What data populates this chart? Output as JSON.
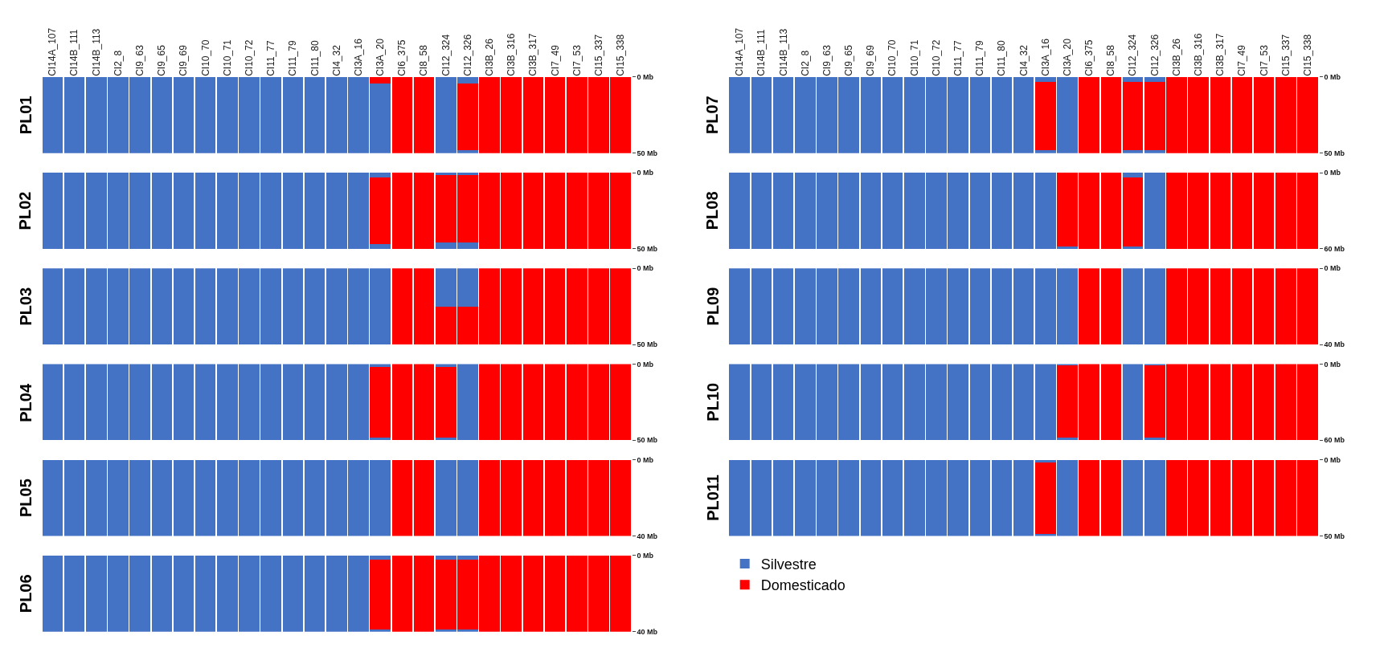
{
  "chart_data": [
    {
      "type": "bar",
      "stacked": true,
      "title": "PL01",
      "categories": [
        "CI14A_107",
        "CI14B_111",
        "CI14B_113",
        "CI2_8",
        "CI9_63",
        "CI9_65",
        "CI9_69",
        "CI10_70",
        "CI10_71",
        "CI10_72",
        "CI11_77",
        "CI11_79",
        "CI11_80",
        "CI4_32",
        "CI3A_16",
        "CI3A_20",
        "CI6_375",
        "CI8_58",
        "CI12_324",
        "CI12_326",
        "CI3B_26",
        "CI3B_316",
        "CI3B_317",
        "CI7_49",
        "CI7_53",
        "CI15_337",
        "CI15_338"
      ],
      "ylim": [
        50,
        0
      ],
      "yticks": [
        {
          "value": 0,
          "label": "0 Mb"
        },
        {
          "value": 50,
          "label": "50 Mb"
        }
      ],
      "series": [
        {
          "color": "#4472c4",
          "values": [
            50,
            50,
            50,
            50,
            50,
            50,
            50,
            50,
            50,
            50,
            50,
            50,
            50,
            50,
            50,
            0,
            0,
            0,
            50,
            4.5,
            0,
            0,
            0,
            0,
            0,
            0,
            0
          ]
        },
        {
          "color": "#ff0000",
          "values": [
            0,
            0,
            0,
            0,
            0,
            0,
            0,
            0,
            0,
            0,
            0,
            0,
            0,
            0,
            0,
            4.5,
            50,
            50,
            0,
            43.5,
            50,
            50,
            50,
            50,
            50,
            50,
            50
          ]
        },
        {
          "color": "#4472c4",
          "values": [
            0,
            0,
            0,
            0,
            0,
            0,
            0,
            0,
            0,
            0,
            0,
            0,
            0,
            0,
            0,
            45.5,
            0,
            0,
            0,
            2,
            0,
            0,
            0,
            0,
            0,
            0,
            0
          ]
        }
      ]
    },
    {
      "type": "bar",
      "stacked": true,
      "title": "PL02",
      "tick_labels": "y",
      "categories": [
        "CI14A_107",
        "CI14B_111",
        "CI14B_113",
        "CI2_8",
        "CI9_63",
        "CI9_65",
        "CI9_69",
        "CI10_70",
        "CI10_71",
        "CI10_72",
        "CI11_77",
        "CI11_79",
        "CI11_80",
        "CI4_32",
        "CI3A_16",
        "CI3A_20",
        "CI6_375",
        "CI8_58",
        "CI12_324",
        "CI12_326",
        "CI3B_26",
        "CI3B_316",
        "CI3B_317",
        "CI7_49",
        "CI7_53",
        "CI15_337",
        "CI15_338"
      ],
      "ylim": [
        50,
        0
      ],
      "yticks": [
        {
          "value": 0,
          "label": "0 Mb"
        },
        {
          "value": 50,
          "label": "50 Mb"
        }
      ],
      "series": [
        {
          "color": "#4472c4",
          "values": [
            50,
            50,
            50,
            50,
            50,
            50,
            50,
            50,
            50,
            50,
            50,
            50,
            50,
            50,
            50,
            3,
            0,
            0,
            1.5,
            1.5,
            0,
            0,
            0,
            0,
            0,
            0,
            0
          ]
        },
        {
          "color": "#ff0000",
          "values": [
            0,
            0,
            0,
            0,
            0,
            0,
            0,
            0,
            0,
            0,
            0,
            0,
            0,
            0,
            0,
            44,
            50,
            50,
            44.5,
            44.5,
            50,
            50,
            50,
            50,
            50,
            50,
            50
          ]
        },
        {
          "color": "#4472c4",
          "values": [
            0,
            0,
            0,
            0,
            0,
            0,
            0,
            0,
            0,
            0,
            0,
            0,
            0,
            0,
            0,
            3,
            0,
            0,
            4,
            4,
            0,
            0,
            0,
            0,
            0,
            0,
            0
          ]
        }
      ]
    },
    {
      "type": "bar",
      "stacked": true,
      "title": "PL03",
      "tick_labels": "y",
      "categories": [
        "CI14A_107",
        "CI14B_111",
        "CI14B_113",
        "CI2_8",
        "CI9_63",
        "CI9_65",
        "CI9_69",
        "CI10_70",
        "CI10_71",
        "CI10_72",
        "CI11_77",
        "CI11_79",
        "CI11_80",
        "CI4_32",
        "CI3A_16",
        "CI3A_20",
        "CI6_375",
        "CI8_58",
        "CI12_324",
        "CI12_326",
        "CI3B_26",
        "CI3B_316",
        "CI3B_317",
        "CI7_49",
        "CI7_53",
        "CI15_337",
        "CI15_338"
      ],
      "ylim": [
        50,
        0
      ],
      "yticks": [
        {
          "value": 0,
          "label": "0 Mb"
        },
        {
          "value": 50,
          "label": "50 Mb"
        }
      ],
      "series": [
        {
          "color": "#4472c4",
          "values": [
            50,
            50,
            50,
            50,
            50,
            50,
            50,
            50,
            50,
            50,
            50,
            50,
            50,
            50,
            50,
            50,
            0,
            0,
            25,
            25,
            0,
            0,
            0,
            0,
            0,
            0,
            0
          ]
        },
        {
          "color": "#ff0000",
          "values": [
            0,
            0,
            0,
            0,
            0,
            0,
            0,
            0,
            0,
            0,
            0,
            0,
            0,
            0,
            0,
            0,
            50,
            50,
            25,
            25,
            50,
            50,
            50,
            50,
            50,
            50,
            50
          ]
        }
      ]
    },
    {
      "type": "bar",
      "stacked": true,
      "title": "PL04",
      "tick_labels": "y",
      "categories": [
        "CI14A_107",
        "CI14B_111",
        "CI14B_113",
        "CI2_8",
        "CI9_63",
        "CI9_65",
        "CI9_69",
        "CI10_70",
        "CI10_71",
        "CI10_72",
        "CI11_77",
        "CI11_79",
        "CI11_80",
        "CI4_32",
        "CI3A_16",
        "CI3A_20",
        "CI6_375",
        "CI8_58",
        "CI12_324",
        "CI12_326",
        "CI3B_26",
        "CI3B_316",
        "CI3B_317",
        "CI7_49",
        "CI7_53",
        "CI15_337",
        "CI15_338"
      ],
      "ylim": [
        50,
        0
      ],
      "yticks": [
        {
          "value": 0,
          "label": "0 Mb"
        },
        {
          "value": 50,
          "label": "50 Mb"
        }
      ],
      "series": [
        {
          "color": "#4472c4",
          "values": [
            50,
            50,
            50,
            50,
            50,
            50,
            50,
            50,
            50,
            50,
            50,
            50,
            50,
            50,
            50,
            2,
            0,
            0,
            2,
            50,
            0,
            0,
            0,
            0,
            0,
            0,
            0
          ]
        },
        {
          "color": "#ff0000",
          "values": [
            0,
            0,
            0,
            0,
            0,
            0,
            0,
            0,
            0,
            0,
            0,
            0,
            0,
            0,
            0,
            47,
            50,
            50,
            47,
            0,
            50,
            50,
            50,
            50,
            50,
            50,
            50
          ]
        },
        {
          "color": "#4472c4",
          "values": [
            0,
            0,
            0,
            0,
            0,
            0,
            0,
            0,
            0,
            0,
            0,
            0,
            0,
            0,
            0,
            1,
            0,
            0,
            1,
            0,
            0,
            0,
            0,
            0,
            0,
            0,
            0
          ]
        }
      ]
    },
    {
      "type": "bar",
      "stacked": true,
      "title": "PL05",
      "tick_labels": "y",
      "categories": [
        "CI14A_107",
        "CI14B_111",
        "CI14B_113",
        "CI2_8",
        "CI9_63",
        "CI9_65",
        "CI9_69",
        "CI10_70",
        "CI10_71",
        "CI10_72",
        "CI11_77",
        "CI11_79",
        "CI11_80",
        "CI4_32",
        "CI3A_16",
        "CI3A_20",
        "CI6_375",
        "CI8_58",
        "CI12_324",
        "CI12_326",
        "CI3B_26",
        "CI3B_316",
        "CI3B_317",
        "CI7_49",
        "CI7_53",
        "CI15_337",
        "CI15_338"
      ],
      "ylim": [
        40,
        0
      ],
      "yticks": [
        {
          "value": 0,
          "label": "0 Mb"
        },
        {
          "value": 40,
          "label": "40 Mb"
        }
      ],
      "series": [
        {
          "color": "#4472c4",
          "values": [
            40,
            40,
            40,
            40,
            40,
            40,
            40,
            40,
            40,
            40,
            40,
            40,
            40,
            40,
            40,
            40,
            0,
            0,
            40,
            40,
            0,
            0,
            0,
            0,
            0,
            0,
            0
          ]
        },
        {
          "color": "#ff0000",
          "values": [
            0,
            0,
            0,
            0,
            0,
            0,
            0,
            0,
            0,
            0,
            0,
            0,
            0,
            0,
            0,
            0,
            40,
            40,
            0,
            0,
            40,
            40,
            40,
            40,
            40,
            40,
            40
          ]
        }
      ]
    },
    {
      "type": "bar",
      "stacked": true,
      "title": "PL06",
      "tick_labels": "y",
      "categories": [
        "CI14A_107",
        "CI14B_111",
        "CI14B_113",
        "CI2_8",
        "CI9_63",
        "CI9_65",
        "CI9_69",
        "CI10_70",
        "CI10_71",
        "CI10_72",
        "CI11_77",
        "CI11_79",
        "CI11_80",
        "CI4_32",
        "CI3A_16",
        "CI3A_20",
        "CI6_375",
        "CI8_58",
        "CI12_324",
        "CI12_326",
        "CI3B_26",
        "CI3B_316",
        "CI3B_317",
        "CI7_49",
        "CI7_53",
        "CI15_337",
        "CI15_338"
      ],
      "ylim": [
        40,
        0
      ],
      "yticks": [
        {
          "value": 0,
          "label": "0 Mb"
        },
        {
          "value": 40,
          "label": "40 Mb"
        }
      ],
      "series": [
        {
          "color": "#4472c4",
          "values": [
            40,
            40,
            40,
            40,
            40,
            40,
            40,
            40,
            40,
            40,
            40,
            40,
            40,
            40,
            40,
            2,
            0,
            0,
            2,
            2,
            0,
            0,
            0,
            0,
            0,
            0,
            0
          ]
        },
        {
          "color": "#ff0000",
          "values": [
            0,
            0,
            0,
            0,
            0,
            0,
            0,
            0,
            0,
            0,
            0,
            0,
            0,
            0,
            0,
            37,
            40,
            40,
            37,
            37,
            40,
            40,
            40,
            40,
            40,
            40,
            40
          ]
        },
        {
          "color": "#4472c4",
          "values": [
            0,
            0,
            0,
            0,
            0,
            0,
            0,
            0,
            0,
            0,
            0,
            0,
            0,
            0,
            0,
            1,
            0,
            0,
            1,
            1,
            0,
            0,
            0,
            0,
            0,
            0,
            0
          ]
        }
      ]
    },
    {
      "type": "bar",
      "stacked": true,
      "title": "PL07",
      "categories": [
        "CI14A_107",
        "CI14B_111",
        "CI14B_113",
        "CI2_8",
        "CI9_63",
        "CI9_65",
        "CI9_69",
        "CI10_70",
        "CI10_71",
        "CI10_72",
        "CI11_77",
        "CI11_79",
        "CI11_80",
        "CI4_32",
        "CI3A_16",
        "CI3A_20",
        "CI6_375",
        "CI8_58",
        "CI12_324",
        "CI12_326",
        "CI3B_26",
        "CI3B_316",
        "CI3B_317",
        "CI7_49",
        "CI7_53",
        "CI15_337",
        "CI15_338"
      ],
      "ylim": [
        50,
        0
      ],
      "yticks": [
        {
          "value": 0,
          "label": "0 Mb"
        },
        {
          "value": 50,
          "label": "50 Mb"
        }
      ],
      "series": [
        {
          "color": "#4472c4",
          "values": [
            50,
            50,
            50,
            50,
            50,
            50,
            50,
            50,
            50,
            50,
            50,
            50,
            50,
            50,
            3,
            50,
            0,
            0,
            3,
            3,
            0,
            0,
            0,
            0,
            0,
            0,
            0
          ]
        },
        {
          "color": "#ff0000",
          "values": [
            0,
            0,
            0,
            0,
            0,
            0,
            0,
            0,
            0,
            0,
            0,
            0,
            0,
            0,
            45,
            0,
            50,
            50,
            45,
            45,
            50,
            50,
            50,
            50,
            50,
            50,
            50
          ]
        },
        {
          "color": "#4472c4",
          "values": [
            0,
            0,
            0,
            0,
            0,
            0,
            0,
            0,
            0,
            0,
            0,
            0,
            0,
            0,
            2,
            0,
            0,
            0,
            2,
            2,
            0,
            0,
            0,
            0,
            0,
            0,
            0
          ]
        }
      ]
    },
    {
      "type": "bar",
      "stacked": true,
      "title": "PL08",
      "tick_labels": "y",
      "categories": [
        "CI14A_107",
        "CI14B_111",
        "CI14B_113",
        "CI2_8",
        "CI9_63",
        "CI9_65",
        "CI9_69",
        "CI10_70",
        "CI10_71",
        "CI10_72",
        "CI11_77",
        "CI11_79",
        "CI11_80",
        "CI4_32",
        "CI3A_16",
        "CI3A_20",
        "CI6_375",
        "CI8_58",
        "CI12_324",
        "CI12_326",
        "CI3B_26",
        "CI3B_316",
        "CI3B_317",
        "CI7_49",
        "CI7_53",
        "CI15_337",
        "CI15_338"
      ],
      "ylim": [
        60,
        0
      ],
      "yticks": [
        {
          "value": 0,
          "label": "0 Mb"
        },
        {
          "value": 60,
          "label": "60 Mb"
        }
      ],
      "series": [
        {
          "color": "#4472c4",
          "values": [
            60,
            60,
            60,
            60,
            60,
            60,
            60,
            60,
            60,
            60,
            60,
            60,
            60,
            60,
            60,
            0,
            0,
            0,
            4,
            60,
            0,
            0,
            0,
            0,
            0,
            0,
            0
          ]
        },
        {
          "color": "#ff0000",
          "values": [
            0,
            0,
            0,
            0,
            0,
            0,
            0,
            0,
            0,
            0,
            0,
            0,
            0,
            0,
            0,
            58,
            60,
            60,
            54,
            0,
            60,
            60,
            60,
            60,
            60,
            60,
            60
          ]
        },
        {
          "color": "#4472c4",
          "values": [
            0,
            0,
            0,
            0,
            0,
            0,
            0,
            0,
            0,
            0,
            0,
            0,
            0,
            0,
            0,
            2,
            0,
            0,
            2,
            0,
            0,
            0,
            0,
            0,
            0,
            0,
            0
          ]
        }
      ]
    },
    {
      "type": "bar",
      "stacked": true,
      "title": "PL09",
      "tick_labels": "y",
      "categories": [
        "CI14A_107",
        "CI14B_111",
        "CI14B_113",
        "CI2_8",
        "CI9_63",
        "CI9_65",
        "CI9_69",
        "CI10_70",
        "CI10_71",
        "CI10_72",
        "CI11_77",
        "CI11_79",
        "CI11_80",
        "CI4_32",
        "CI3A_16",
        "CI3A_20",
        "CI6_375",
        "CI8_58",
        "CI12_324",
        "CI12_326",
        "CI3B_26",
        "CI3B_316",
        "CI3B_317",
        "CI7_49",
        "CI7_53",
        "CI15_337",
        "CI15_338"
      ],
      "ylim": [
        40,
        0
      ],
      "yticks": [
        {
          "value": 0,
          "label": "0 Mb"
        },
        {
          "value": 40,
          "label": "40 Mb"
        }
      ],
      "series": [
        {
          "color": "#4472c4",
          "values": [
            40,
            40,
            40,
            40,
            40,
            40,
            40,
            40,
            40,
            40,
            40,
            40,
            40,
            40,
            40,
            40,
            0,
            0,
            40,
            40,
            0,
            0,
            0,
            0,
            0,
            0,
            0
          ]
        },
        {
          "color": "#ff0000",
          "values": [
            0,
            0,
            0,
            0,
            0,
            0,
            0,
            0,
            0,
            0,
            0,
            0,
            0,
            0,
            0,
            0,
            40,
            40,
            0,
            0,
            40,
            40,
            40,
            40,
            40,
            40,
            40
          ]
        }
      ]
    },
    {
      "type": "bar",
      "stacked": true,
      "title": "PL10",
      "tick_labels": "y",
      "categories": [
        "CI14A_107",
        "CI14B_111",
        "CI14B_113",
        "CI2_8",
        "CI9_63",
        "CI9_65",
        "CI9_69",
        "CI10_70",
        "CI10_71",
        "CI10_72",
        "CI11_77",
        "CI11_79",
        "CI11_80",
        "CI4_32",
        "CI3A_16",
        "CI3A_20",
        "CI6_375",
        "CI8_58",
        "CI12_324",
        "CI12_326",
        "CI3B_26",
        "CI3B_316",
        "CI3B_317",
        "CI7_49",
        "CI7_53",
        "CI15_337",
        "CI15_338"
      ],
      "ylim": [
        60,
        0
      ],
      "yticks": [
        {
          "value": 0,
          "label": "0 Mb"
        },
        {
          "value": 60,
          "label": "60 Mb"
        }
      ],
      "series": [
        {
          "color": "#4472c4",
          "values": [
            60,
            60,
            60,
            60,
            60,
            60,
            60,
            60,
            60,
            60,
            60,
            60,
            60,
            60,
            60,
            1,
            0,
            0,
            60,
            1,
            0,
            0,
            0,
            0,
            0,
            0,
            0
          ]
        },
        {
          "color": "#ff0000",
          "values": [
            0,
            0,
            0,
            0,
            0,
            0,
            0,
            0,
            0,
            0,
            0,
            0,
            0,
            0,
            0,
            57,
            60,
            60,
            0,
            57,
            60,
            60,
            60,
            60,
            60,
            60,
            60
          ]
        },
        {
          "color": "#4472c4",
          "values": [
            0,
            0,
            0,
            0,
            0,
            0,
            0,
            0,
            0,
            0,
            0,
            0,
            0,
            0,
            0,
            2,
            0,
            0,
            0,
            2,
            0,
            0,
            0,
            0,
            0,
            0,
            0
          ]
        }
      ]
    },
    {
      "type": "bar",
      "stacked": true,
      "title": "PL011",
      "tick_labels": "y",
      "legend": "bottom left",
      "categories": [
        "CI14A_107",
        "CI14B_111",
        "CI14B_113",
        "CI2_8",
        "CI9_63",
        "CI9_65",
        "CI9_69",
        "CI10_70",
        "CI10_71",
        "CI10_72",
        "CI11_77",
        "CI11_79",
        "CI11_80",
        "CI4_32",
        "CI3A_16",
        "CI3A_20",
        "CI6_375",
        "CI8_58",
        "CI12_324",
        "CI12_326",
        "CI3B_26",
        "CI3B_316",
        "CI3B_317",
        "CI7_49",
        "CI7_53",
        "CI15_337",
        "CI15_338"
      ],
      "ylim": [
        50,
        0
      ],
      "yticks": [
        {
          "value": 0,
          "label": "0 Mb"
        },
        {
          "value": 50,
          "label": "50 Mb"
        }
      ],
      "series": [
        {
          "name": "Silvestre",
          "color": "#4472c4",
          "values": [
            50,
            50,
            50,
            50,
            50,
            50,
            50,
            50,
            50,
            50,
            50,
            50,
            50,
            50,
            1.5,
            50,
            0,
            0,
            50,
            50,
            0,
            0,
            0,
            0,
            0,
            0,
            0
          ]
        },
        {
          "name": "Domesticado",
          "color": "#ff0000",
          "values": [
            0,
            0,
            0,
            0,
            0,
            0,
            0,
            0,
            0,
            0,
            0,
            0,
            0,
            0,
            47,
            0,
            50,
            50,
            0,
            0,
            50,
            50,
            50,
            50,
            50,
            50,
            50
          ]
        },
        {
          "color": "#4472c4",
          "values": [
            0,
            0,
            0,
            0,
            0,
            0,
            0,
            0,
            0,
            0,
            0,
            0,
            0,
            0,
            1.5,
            0,
            0,
            0,
            0,
            0,
            0,
            0,
            0,
            0,
            0,
            0,
            0
          ]
        }
      ]
    }
  ]
}
